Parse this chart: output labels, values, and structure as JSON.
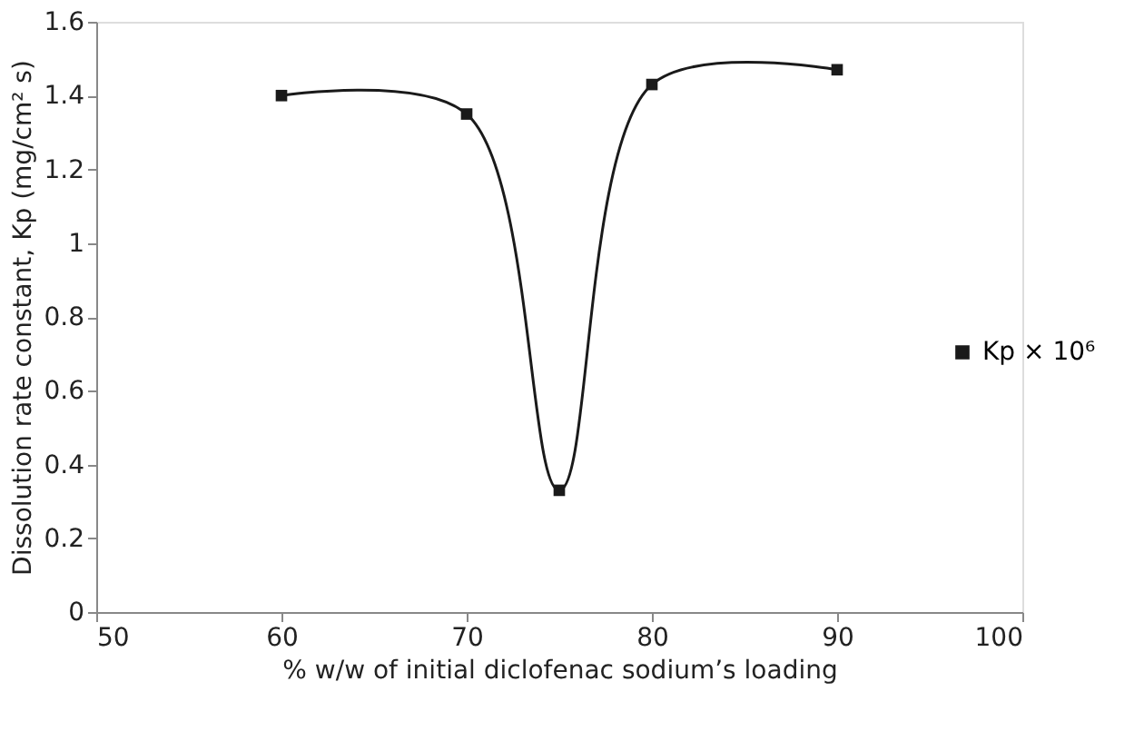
{
  "chart_data": {
    "type": "line",
    "xlabel": "% w/w of initial diclofenac sodium’s loading",
    "ylabel": "Dissolution rate constant, Kp (mg/cm² s)",
    "x": [
      60,
      70,
      75,
      80,
      90
    ],
    "series": [
      {
        "name": "Kp × 10⁶",
        "color": "#1a1a1a",
        "values": [
          1.4,
          1.35,
          0.33,
          1.43,
          1.47
        ]
      }
    ],
    "xlim": [
      50,
      100
    ],
    "xticks": [
      50,
      60,
      70,
      80,
      90,
      100
    ],
    "ylim": [
      0,
      1.6
    ],
    "yticks": [
      0,
      0.2,
      0.4,
      0.6,
      0.8,
      1,
      1.2,
      1.4,
      1.6
    ],
    "grid": false,
    "legend": "right",
    "marker": "square",
    "line_style": "solid"
  }
}
